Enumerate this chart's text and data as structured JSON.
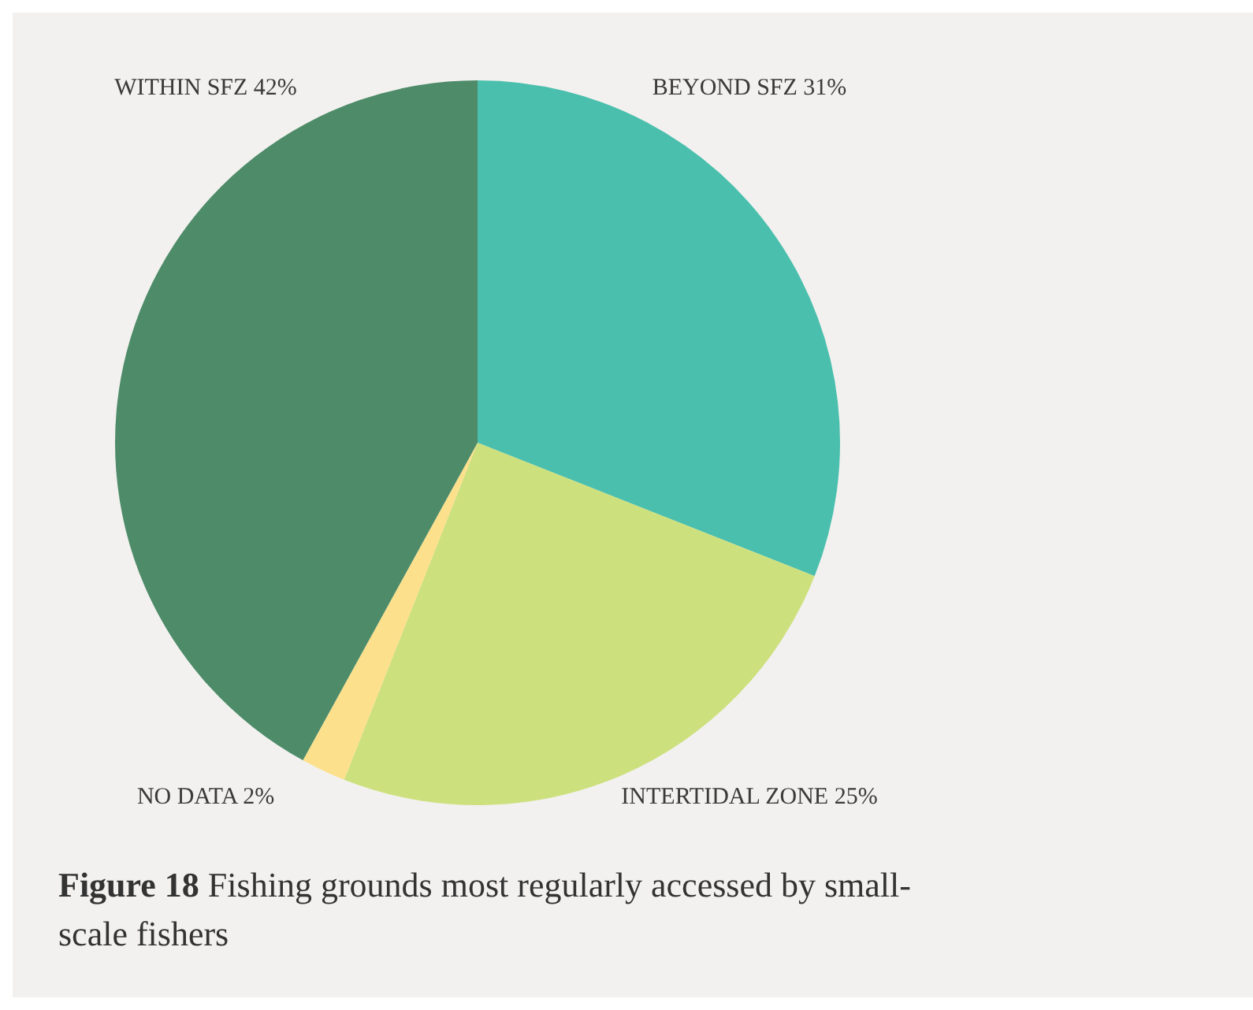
{
  "chart_data": {
    "type": "pie",
    "title": "Figure 18",
    "subtitle": "Fishing grounds most regularly accessed by small-scale fishers",
    "categories": [
      "BEYOND SFZ",
      "INTERTIDAL ZONE",
      "NO DATA",
      "WITHIN SFZ"
    ],
    "values": [
      31,
      25,
      2,
      42
    ],
    "value_labels": [
      "31%",
      "25%",
      "2%",
      "42%"
    ],
    "colors": [
      "#4bbfad",
      "#cde07e",
      "#fde08c",
      "#4e8c69"
    ],
    "legend": false
  }
}
